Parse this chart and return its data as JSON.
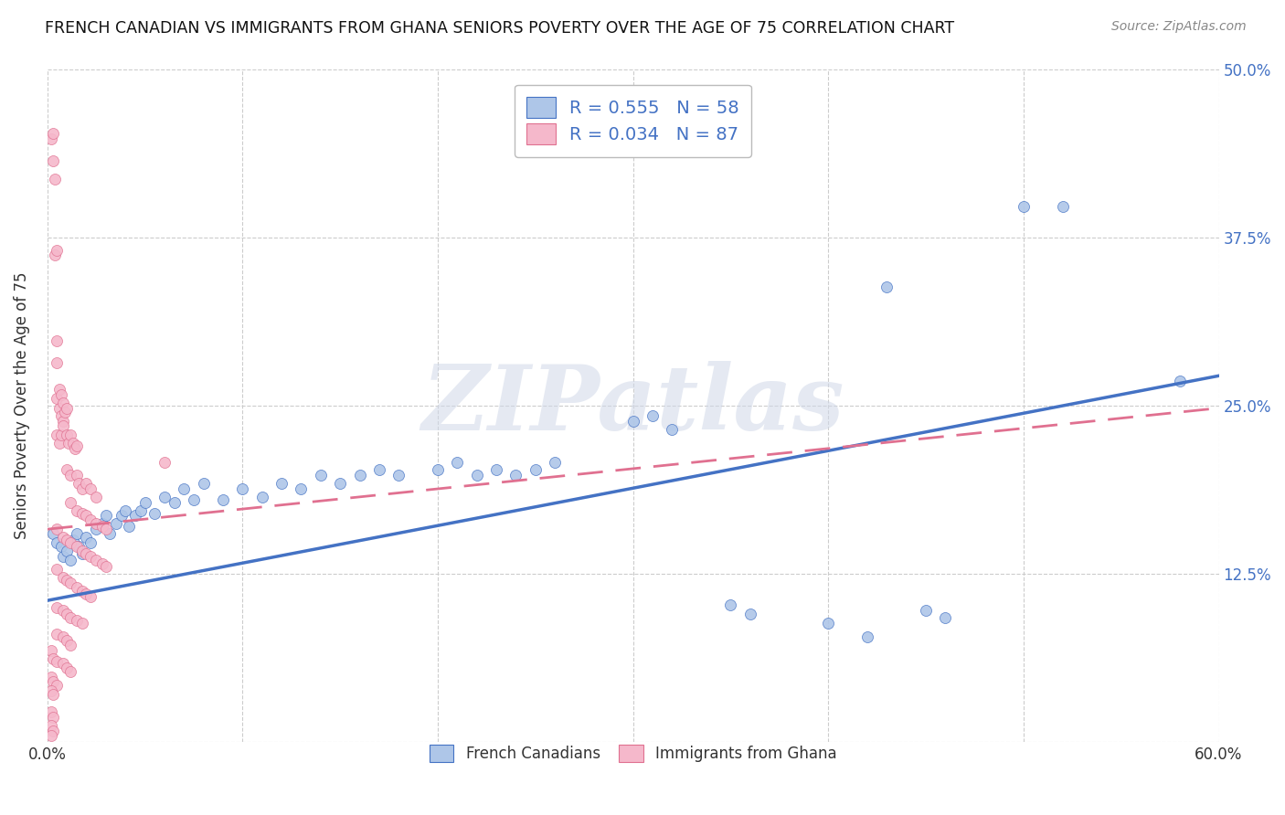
{
  "title": "FRENCH CANADIAN VS IMMIGRANTS FROM GHANA SENIORS POVERTY OVER THE AGE OF 75 CORRELATION CHART",
  "source": "Source: ZipAtlas.com",
  "ylabel": "Seniors Poverty Over the Age of 75",
  "xlim": [
    0.0,
    0.6
  ],
  "ylim": [
    0.0,
    0.5
  ],
  "xticks": [
    0.0,
    0.1,
    0.2,
    0.3,
    0.4,
    0.5,
    0.6
  ],
  "yticks": [
    0.0,
    0.125,
    0.25,
    0.375,
    0.5
  ],
  "grid_color": "#cccccc",
  "background_color": "#ffffff",
  "blue_color": "#aec6e8",
  "pink_color": "#f5b8cb",
  "blue_line_color": "#4472c4",
  "pink_line_color": "#e07090",
  "R_blue": 0.555,
  "N_blue": 58,
  "R_pink": 0.034,
  "N_pink": 87,
  "watermark": "ZIPatlas",
  "legend_label_blue": "French Canadians",
  "legend_label_pink": "Immigrants from Ghana",
  "blue_line": [
    0.0,
    0.105,
    0.6,
    0.272
  ],
  "pink_line": [
    0.0,
    0.158,
    0.6,
    0.248
  ],
  "blue_scatter": [
    [
      0.003,
      0.155
    ],
    [
      0.005,
      0.148
    ],
    [
      0.007,
      0.145
    ],
    [
      0.008,
      0.138
    ],
    [
      0.01,
      0.142
    ],
    [
      0.012,
      0.135
    ],
    [
      0.013,
      0.15
    ],
    [
      0.015,
      0.155
    ],
    [
      0.016,
      0.145
    ],
    [
      0.018,
      0.14
    ],
    [
      0.02,
      0.152
    ],
    [
      0.022,
      0.148
    ],
    [
      0.025,
      0.158
    ],
    [
      0.028,
      0.162
    ],
    [
      0.03,
      0.168
    ],
    [
      0.032,
      0.155
    ],
    [
      0.035,
      0.162
    ],
    [
      0.038,
      0.168
    ],
    [
      0.04,
      0.172
    ],
    [
      0.042,
      0.16
    ],
    [
      0.045,
      0.168
    ],
    [
      0.048,
      0.172
    ],
    [
      0.05,
      0.178
    ],
    [
      0.055,
      0.17
    ],
    [
      0.06,
      0.182
    ],
    [
      0.065,
      0.178
    ],
    [
      0.07,
      0.188
    ],
    [
      0.075,
      0.18
    ],
    [
      0.08,
      0.192
    ],
    [
      0.09,
      0.18
    ],
    [
      0.1,
      0.188
    ],
    [
      0.11,
      0.182
    ],
    [
      0.12,
      0.192
    ],
    [
      0.13,
      0.188
    ],
    [
      0.14,
      0.198
    ],
    [
      0.15,
      0.192
    ],
    [
      0.16,
      0.198
    ],
    [
      0.17,
      0.202
    ],
    [
      0.18,
      0.198
    ],
    [
      0.2,
      0.202
    ],
    [
      0.21,
      0.208
    ],
    [
      0.22,
      0.198
    ],
    [
      0.23,
      0.202
    ],
    [
      0.24,
      0.198
    ],
    [
      0.25,
      0.202
    ],
    [
      0.26,
      0.208
    ],
    [
      0.3,
      0.238
    ],
    [
      0.31,
      0.242
    ],
    [
      0.32,
      0.232
    ],
    [
      0.35,
      0.102
    ],
    [
      0.36,
      0.095
    ],
    [
      0.4,
      0.088
    ],
    [
      0.42,
      0.078
    ],
    [
      0.45,
      0.098
    ],
    [
      0.46,
      0.092
    ],
    [
      0.43,
      0.338
    ],
    [
      0.5,
      0.398
    ],
    [
      0.52,
      0.398
    ],
    [
      0.58,
      0.268
    ]
  ],
  "pink_scatter": [
    [
      0.002,
      0.448
    ],
    [
      0.003,
      0.452
    ],
    [
      0.003,
      0.432
    ],
    [
      0.004,
      0.418
    ],
    [
      0.004,
      0.362
    ],
    [
      0.005,
      0.365
    ],
    [
      0.005,
      0.298
    ],
    [
      0.005,
      0.282
    ],
    [
      0.005,
      0.255
    ],
    [
      0.006,
      0.262
    ],
    [
      0.006,
      0.248
    ],
    [
      0.007,
      0.258
    ],
    [
      0.007,
      0.242
    ],
    [
      0.008,
      0.252
    ],
    [
      0.008,
      0.238
    ],
    [
      0.009,
      0.245
    ],
    [
      0.01,
      0.248
    ],
    [
      0.005,
      0.228
    ],
    [
      0.006,
      0.222
    ],
    [
      0.007,
      0.228
    ],
    [
      0.008,
      0.235
    ],
    [
      0.01,
      0.228
    ],
    [
      0.011,
      0.222
    ],
    [
      0.012,
      0.228
    ],
    [
      0.013,
      0.222
    ],
    [
      0.014,
      0.218
    ],
    [
      0.015,
      0.22
    ],
    [
      0.01,
      0.202
    ],
    [
      0.012,
      0.198
    ],
    [
      0.015,
      0.198
    ],
    [
      0.016,
      0.192
    ],
    [
      0.018,
      0.188
    ],
    [
      0.02,
      0.192
    ],
    [
      0.022,
      0.188
    ],
    [
      0.025,
      0.182
    ],
    [
      0.06,
      0.208
    ],
    [
      0.012,
      0.178
    ],
    [
      0.015,
      0.172
    ],
    [
      0.018,
      0.17
    ],
    [
      0.02,
      0.168
    ],
    [
      0.022,
      0.165
    ],
    [
      0.025,
      0.162
    ],
    [
      0.028,
      0.16
    ],
    [
      0.03,
      0.158
    ],
    [
      0.005,
      0.158
    ],
    [
      0.008,
      0.152
    ],
    [
      0.01,
      0.15
    ],
    [
      0.012,
      0.148
    ],
    [
      0.015,
      0.145
    ],
    [
      0.018,
      0.142
    ],
    [
      0.02,
      0.14
    ],
    [
      0.022,
      0.138
    ],
    [
      0.025,
      0.135
    ],
    [
      0.028,
      0.132
    ],
    [
      0.03,
      0.13
    ],
    [
      0.005,
      0.128
    ],
    [
      0.008,
      0.122
    ],
    [
      0.01,
      0.12
    ],
    [
      0.012,
      0.118
    ],
    [
      0.015,
      0.115
    ],
    [
      0.018,
      0.112
    ],
    [
      0.02,
      0.11
    ],
    [
      0.022,
      0.108
    ],
    [
      0.005,
      0.1
    ],
    [
      0.008,
      0.098
    ],
    [
      0.01,
      0.095
    ],
    [
      0.012,
      0.092
    ],
    [
      0.015,
      0.09
    ],
    [
      0.018,
      0.088
    ],
    [
      0.005,
      0.08
    ],
    [
      0.008,
      0.078
    ],
    [
      0.01,
      0.075
    ],
    [
      0.012,
      0.072
    ],
    [
      0.002,
      0.068
    ],
    [
      0.003,
      0.062
    ],
    [
      0.005,
      0.06
    ],
    [
      0.008,
      0.058
    ],
    [
      0.01,
      0.055
    ],
    [
      0.012,
      0.052
    ],
    [
      0.002,
      0.048
    ],
    [
      0.003,
      0.045
    ],
    [
      0.005,
      0.042
    ],
    [
      0.002,
      0.038
    ],
    [
      0.003,
      0.035
    ],
    [
      0.002,
      0.022
    ],
    [
      0.003,
      0.018
    ],
    [
      0.002,
      0.012
    ],
    [
      0.003,
      0.008
    ],
    [
      0.002,
      0.005
    ]
  ]
}
